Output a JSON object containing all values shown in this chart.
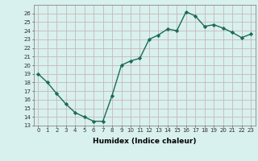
{
  "x": [
    0,
    1,
    2,
    3,
    4,
    5,
    6,
    7,
    8,
    9,
    10,
    11,
    12,
    13,
    14,
    15,
    16,
    17,
    18,
    19,
    20,
    21,
    22,
    23
  ],
  "y": [
    19,
    18,
    16.7,
    15.5,
    14.5,
    14.0,
    13.5,
    13.5,
    16.5,
    20.0,
    20.5,
    20.8,
    23.0,
    23.5,
    24.2,
    24.0,
    26.2,
    25.7,
    24.5,
    24.7,
    24.3,
    23.8,
    23.2,
    23.6
  ],
  "xlabel": "Humidex (Indice chaleur)",
  "ylim": [
    13,
    27
  ],
  "xlim": [
    -0.5,
    23.5
  ],
  "yticks": [
    13,
    14,
    15,
    16,
    17,
    18,
    19,
    20,
    21,
    22,
    23,
    24,
    25,
    26
  ],
  "xticks": [
    0,
    1,
    2,
    3,
    4,
    5,
    6,
    7,
    8,
    9,
    10,
    11,
    12,
    13,
    14,
    15,
    16,
    17,
    18,
    19,
    20,
    21,
    22,
    23
  ],
  "line_color": "#1a6b5a",
  "marker": "D",
  "marker_size": 2.2,
  "bg_color": "#d8f0ee",
  "grid_color": "#c8b8b8",
  "line_width": 1.0,
  "tick_fontsize": 5.0,
  "xlabel_fontsize": 6.5
}
